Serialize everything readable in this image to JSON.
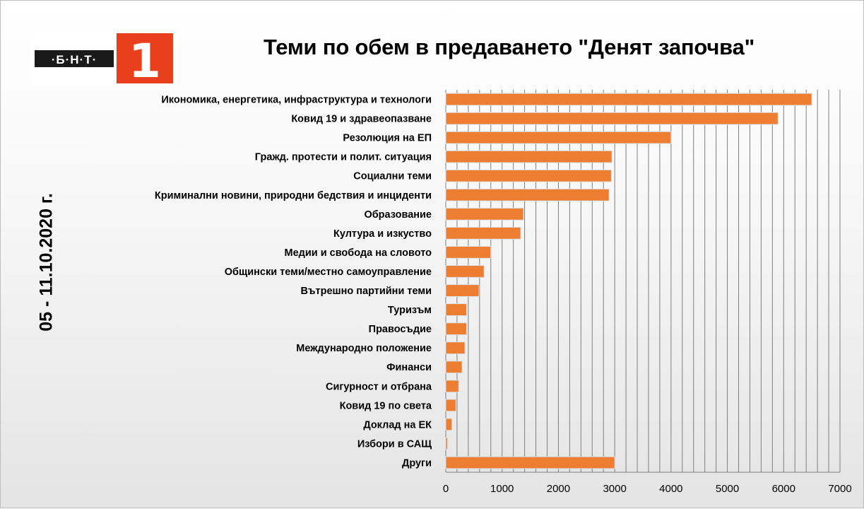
{
  "logo": {
    "text": "·Б·Н·Т·",
    "number": "1"
  },
  "title": "Теми по обем в предаването \"Денят започва\"",
  "date_label": "05 - 11.10.2020 г.",
  "colors": {
    "bar": "#ED7D31",
    "bar_edge": "#d9dde3",
    "grid": "#7f7f7f",
    "logo_red": "#E8401C",
    "logo_black": "#1a1a1a"
  },
  "chart_data": {
    "type": "bar",
    "orientation": "horizontal",
    "title": "Теми по обем в предаването \"Денят започва\"",
    "xlabel": "",
    "ylabel": "05 - 11.10.2020 г.",
    "xlim": [
      0,
      7000
    ],
    "xticks": [
      0,
      1000,
      2000,
      3000,
      4000,
      5000,
      6000,
      7000
    ],
    "minor_grid_step": 200,
    "grid": true,
    "categories": [
      "Икономика, енергетика, инфраструктура и технологи",
      "Ковид 19 и здравеопазване",
      "Резолюция на ЕП",
      "Гражд. протести и полит. ситуация",
      "Социални теми",
      "Криминални новини, природни бедствия и инциденти",
      "Образование",
      "Култура и изкуство",
      "Медии и свобода на словото",
      "Общински теми/местно самоуправление",
      "Вътрешно партийни теми",
      "Туризъм",
      "Правосъдие",
      "Международно положение",
      "Финанси",
      "Сигурност и отбрана",
      "Ковид 19 по света",
      "Доклад на ЕК",
      "Избори в САЩ",
      "Други"
    ],
    "values": [
      6500,
      5900,
      4000,
      2950,
      2940,
      2900,
      1380,
      1330,
      800,
      680,
      590,
      370,
      370,
      340,
      290,
      230,
      180,
      110,
      30,
      3000
    ]
  }
}
